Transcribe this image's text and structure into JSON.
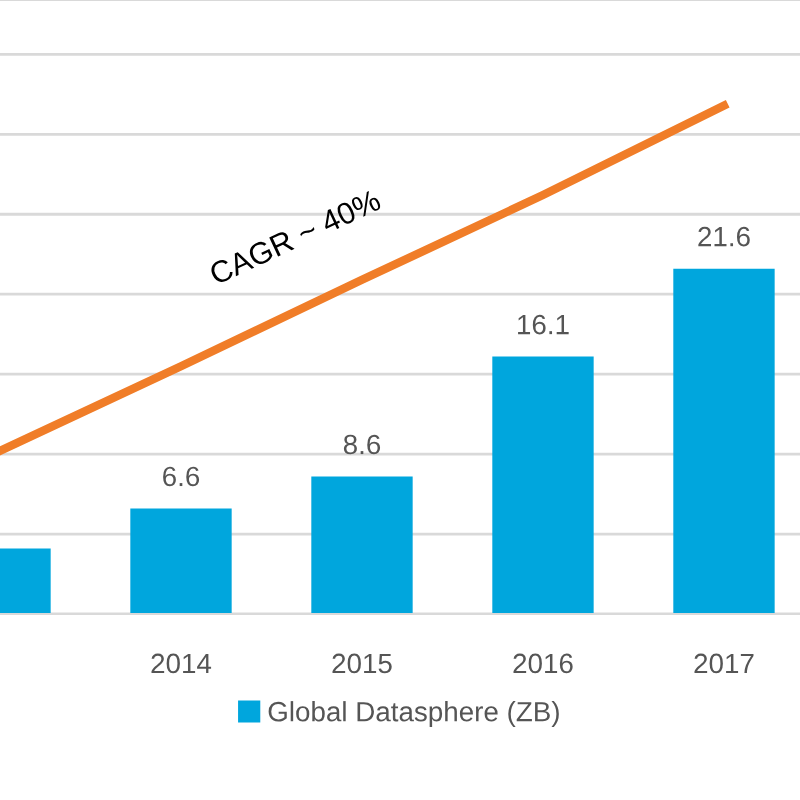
{
  "chart_data": {
    "type": "bar",
    "categories": [
      null,
      "2014",
      "2015",
      "2016",
      "2017"
    ],
    "series": [
      {
        "name": "Global Datasphere (ZB)",
        "color": "#00a6dd",
        "values": [
          4.1,
          6.6,
          8.6,
          16.1,
          21.6
        ],
        "value_labels": [
          null,
          "6.6",
          "8.6",
          "16.1",
          "21.6"
        ]
      },
      {
        "type": "line",
        "color": "#f07d28",
        "values": [
          10.2,
          15.5,
          20.9,
          26.2,
          31.8
        ]
      }
    ],
    "annotations": [
      "CAGR ~ 40%"
    ],
    "ylim": [
      0,
      38.4
    ],
    "yticks": [
      {
        "value": 0,
        "label": null
      },
      {
        "value": 5,
        "label": null
      },
      {
        "value": 10,
        "label": null
      },
      {
        "value": 15,
        "label": null
      },
      {
        "value": 20,
        "label": null
      },
      {
        "value": 25,
        "label": null
      },
      {
        "value": 30,
        "label": null
      },
      {
        "value": 35,
        "label": null
      }
    ],
    "tick_labels": "x",
    "grid": "y",
    "legend": "bottom"
  }
}
